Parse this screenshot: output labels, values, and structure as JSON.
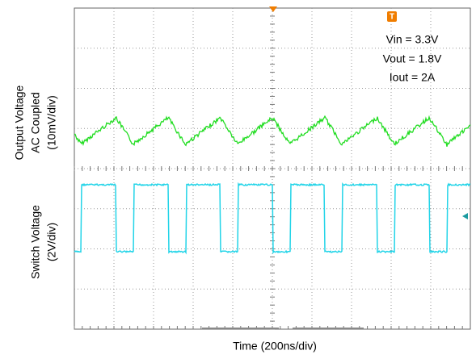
{
  "annotations": [
    "Vin = 3.3V",
    "Vout = 1.8V",
    "Iout = 2A"
  ],
  "y_labels": {
    "output": [
      "Output Voltage",
      "AC Coupled",
      "(10mV/div)"
    ],
    "switch": [
      "Switch Voltage",
      "(2V/div)"
    ]
  },
  "x_label": "Time (200ns/div)"
}
